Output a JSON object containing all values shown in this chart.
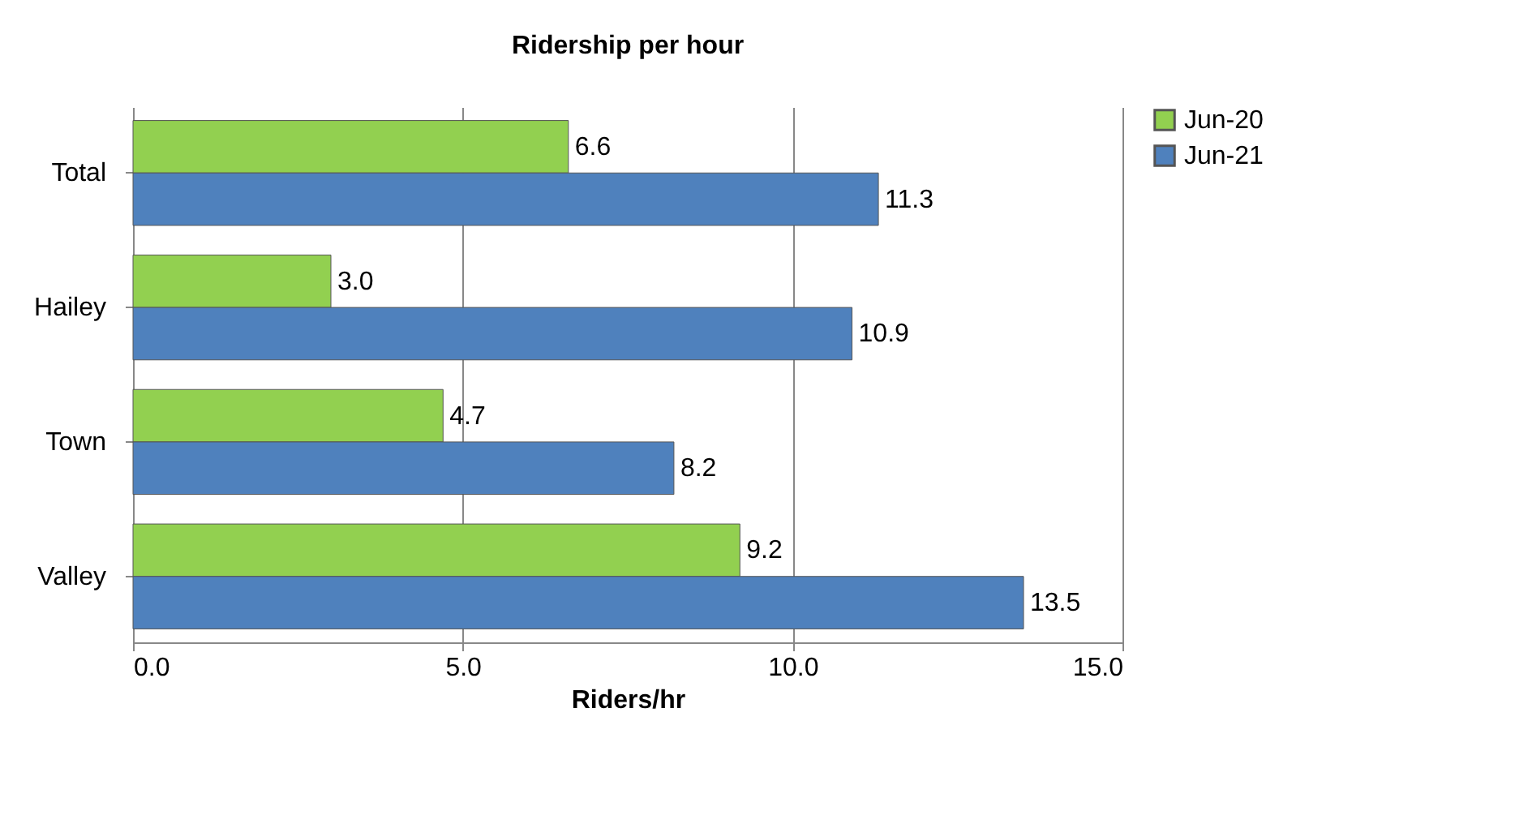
{
  "chart_data": {
    "type": "bar",
    "orientation": "horizontal",
    "title": "Ridership per hour",
    "xlabel": "Riders/hr",
    "categories": [
      "Total",
      "Hailey",
      "Town",
      "Valley"
    ],
    "series": [
      {
        "name": "Jun-20",
        "color": "#92d050",
        "values": [
          6.6,
          3.0,
          4.7,
          9.2
        ],
        "value_labels": [
          "6.6",
          "3.0",
          "4.7",
          "9.2"
        ]
      },
      {
        "name": "Jun-21",
        "color": "#4f81bd",
        "values": [
          11.3,
          10.9,
          8.2,
          13.5
        ],
        "value_labels": [
          "11.3",
          "10.9",
          "8.2",
          "13.5"
        ]
      }
    ],
    "xlim": [
      0,
      15
    ],
    "xticks": [
      {
        "value": 0,
        "label": "0.0"
      },
      {
        "value": 5,
        "label": "5.0"
      },
      {
        "value": 10,
        "label": "10.0"
      },
      {
        "value": 15,
        "label": "15.0"
      }
    ],
    "grid": "x",
    "legend": "right"
  }
}
